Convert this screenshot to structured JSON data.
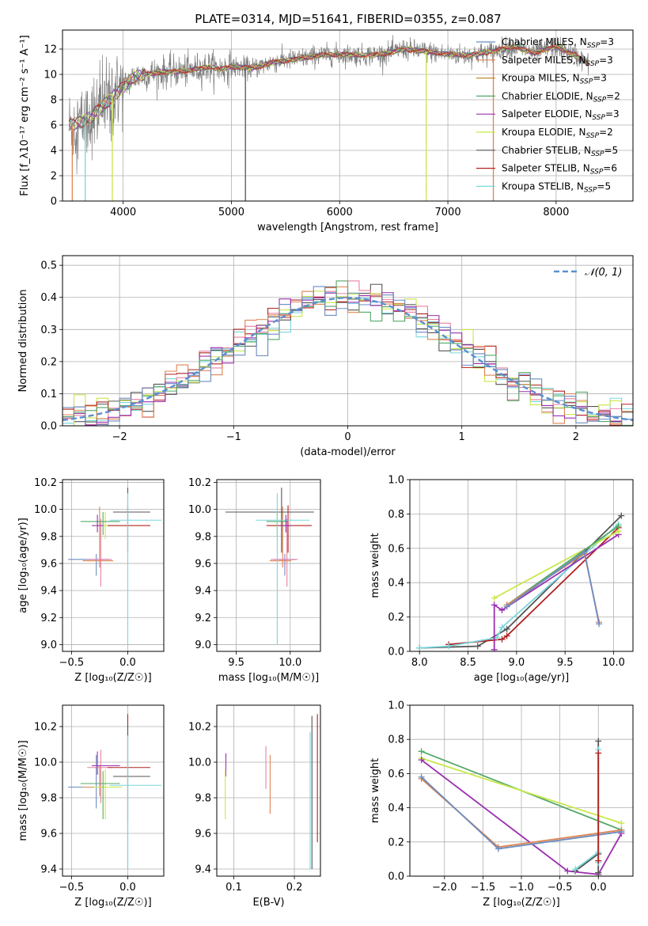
{
  "figure": {
    "title": "PLATE=0314, MJD=51641, FIBERID=0355, z=0.087",
    "colors": {
      "gray": "#808080",
      "cyan": "#7ad6dc",
      "orange": "#dd8452",
      "green": "#55a868",
      "red": "#b22222",
      "purple": "#9b30b0",
      "yellow": "#c8e84a",
      "darkgray": "#555555",
      "blue": "#6b8cc0",
      "pink": "#e880a0",
      "dashed": "#5b8fd0",
      "tan": "#c08a30"
    }
  },
  "chart_data": [
    {
      "type": "line",
      "id": "spectrum",
      "xlabel": "wavelength [Angstrom, rest frame]",
      "ylabel": "Flux [f_λ10⁻¹⁷ erg cm⁻² s⁻¹ A⁻¹]",
      "xlim": [
        3440,
        8710
      ],
      "ylim": [
        0,
        13.5
      ],
      "xticks": [
        4000,
        5000,
        6000,
        7000,
        8000
      ],
      "yticks": [
        0,
        2,
        4,
        6,
        8,
        10,
        12
      ],
      "legend_position": "right",
      "legend": [
        {
          "label": "Chabrier MILES, N",
          "sub": "SSP",
          "val": "=3",
          "color": "blue"
        },
        {
          "label": "Salpeter MILES, N",
          "sub": "SSP",
          "val": "=3",
          "color": "orange"
        },
        {
          "label": "Kroupa MILES, N",
          "sub": "SSP",
          "val": "=3",
          "color": "tan"
        },
        {
          "label": "Chabrier ELODIE, N",
          "sub": "SSP",
          "val": "=2",
          "color": "green"
        },
        {
          "label": "Salpeter ELODIE, N",
          "sub": "SSP",
          "val": "=3",
          "color": "purple"
        },
        {
          "label": "Kroupa ELODIE, N",
          "sub": "SSP",
          "val": "=2",
          "color": "yellow"
        },
        {
          "label": "Chabrier STELIB, N",
          "sub": "SSP",
          "val": "=5",
          "color": "darkgray"
        },
        {
          "label": "Salpeter STELIB, N",
          "sub": "SSP",
          "val": "=6",
          "color": "red"
        },
        {
          "label": "Kroupa STELIB, N",
          "sub": "SSP",
          "val": "=5",
          "color": "cyan"
        }
      ],
      "continuum": [
        [
          3500,
          6.0
        ],
        [
          3600,
          6.2
        ],
        [
          3700,
          6.6
        ],
        [
          3800,
          7.4
        ],
        [
          3900,
          8.2
        ],
        [
          4000,
          9.0
        ],
        [
          4100,
          9.8
        ],
        [
          4200,
          10.0
        ],
        [
          4400,
          10.2
        ],
        [
          4600,
          10.3
        ],
        [
          4800,
          10.6
        ],
        [
          4900,
          10.4
        ],
        [
          5000,
          10.6
        ],
        [
          5200,
          10.5
        ],
        [
          5400,
          11.0
        ],
        [
          5600,
          11.2
        ],
        [
          5800,
          11.5
        ],
        [
          6000,
          11.6
        ],
        [
          6200,
          11.5
        ],
        [
          6400,
          11.6
        ],
        [
          6600,
          12.0
        ],
        [
          6800,
          11.8
        ],
        [
          7000,
          11.6
        ],
        [
          7200,
          11.5
        ],
        [
          7400,
          11.8
        ],
        [
          7600,
          12.2
        ],
        [
          7800,
          11.7
        ],
        [
          8000,
          12.2
        ],
        [
          8200,
          11.4
        ],
        [
          8300,
          10.8
        ]
      ],
      "dips": [
        [
          3530,
          0
        ],
        [
          3650,
          0
        ],
        [
          3900,
          0
        ],
        [
          5130,
          0
        ],
        [
          6800,
          0
        ],
        [
          7420,
          0
        ]
      ]
    },
    {
      "type": "line",
      "id": "residuals",
      "xlabel": "(data-model)/error",
      "ylabel": "Normed distribution",
      "xlim": [
        -2.5,
        2.5
      ],
      "ylim": [
        0,
        0.53
      ],
      "xticks": [
        -2,
        -1,
        0,
        1,
        2
      ],
      "yticks": [
        0.0,
        0.1,
        0.2,
        0.3,
        0.4,
        0.5
      ],
      "legend": "𝒩(0, 1)",
      "legend_position": "top-right",
      "bin_width": 0.1
    },
    {
      "type": "scatter",
      "id": "age-vs-Z",
      "xlabel": "Z [log₁₀(Z/Z☉)]",
      "ylabel": "age  [log₁₀(age/yr)]",
      "xlim": [
        -0.58,
        0.32
      ],
      "ylim": [
        8.95,
        10.22
      ],
      "xticks": [
        -0.5,
        0.0
      ],
      "yticks": [
        9.0,
        9.2,
        9.4,
        9.6,
        9.8,
        10.0,
        10.2
      ],
      "points": [
        {
          "x": -0.28,
          "y": 9.63,
          "xerr": [
            0.25,
            0.12
          ],
          "yerr": [
            0.12,
            0.04
          ],
          "color": "blue"
        },
        {
          "x": -0.25,
          "y": 9.62,
          "xerr": [
            0.15,
            0.12
          ],
          "yerr": [
            0.05,
            0.4
          ],
          "color": "orange"
        },
        {
          "x": -0.24,
          "y": 9.63,
          "xerr": [
            0.12,
            0.1
          ],
          "yerr": [
            0.2,
            0.3
          ],
          "color": "pink"
        },
        {
          "x": -0.2,
          "y": 9.88,
          "xerr": [
            0.1,
            0.15
          ],
          "yerr": [
            0.1,
            0.1
          ],
          "color": "yellow"
        },
        {
          "x": -0.22,
          "y": 9.91,
          "xerr": [
            0.2,
            0.15
          ],
          "yerr": [
            0.1,
            0.07
          ],
          "color": "green"
        },
        {
          "x": 0.0,
          "y": 9.88,
          "xerr": [
            0.18,
            0.2
          ],
          "yerr": [
            0.2,
            0.15
          ],
          "color": "red"
        },
        {
          "x": 0.0,
          "y": 9.98,
          "xerr": [
            0.13,
            0.2
          ],
          "yerr": [
            0.3,
            0.18
          ],
          "color": "darkgray"
        },
        {
          "x": 0.0,
          "y": 9.92,
          "xerr": [
            0.16,
            0.3
          ],
          "yerr": [
            0.92,
            0.2
          ],
          "color": "cyan"
        },
        {
          "x": -0.27,
          "y": 9.88,
          "xerr": [
            0.05,
            0.05
          ],
          "yerr": [
            0.05,
            0.08
          ],
          "color": "purple"
        }
      ]
    },
    {
      "type": "scatter",
      "id": "age-vs-mass",
      "xlabel": "mass [log₁₀(M/M☉)]",
      "ylabel": "",
      "xlim": [
        9.32,
        10.28
      ],
      "ylim": [
        8.95,
        10.22
      ],
      "xticks": [
        9.5,
        10.0
      ],
      "yticks": [
        9.0,
        9.2,
        9.4,
        9.6,
        9.8,
        10.0,
        10.2
      ],
      "points": [
        {
          "x": 9.95,
          "y": 9.63,
          "xerr": [
            0.1,
            0.1
          ],
          "yerr": [
            0.12,
            0.04
          ],
          "color": "blue"
        },
        {
          "x": 9.93,
          "y": 9.62,
          "xerr": [
            0.12,
            0.08
          ],
          "yerr": [
            0.05,
            0.4
          ],
          "color": "orange"
        },
        {
          "x": 9.97,
          "y": 9.63,
          "xerr": [
            0.15,
            0.1
          ],
          "yerr": [
            0.2,
            0.3
          ],
          "color": "pink"
        },
        {
          "x": 9.88,
          "y": 9.88,
          "xerr": [
            0.08,
            0.08
          ],
          "yerr": [
            0.1,
            0.1
          ],
          "color": "yellow"
        },
        {
          "x": 9.88,
          "y": 9.91,
          "xerr": [
            0.1,
            0.1
          ],
          "yerr": [
            0.1,
            0.07
          ],
          "color": "green"
        },
        {
          "x": 9.98,
          "y": 9.88,
          "xerr": [
            0.2,
            0.22
          ],
          "yerr": [
            0.2,
            0.15
          ],
          "color": "red"
        },
        {
          "x": 9.92,
          "y": 9.98,
          "xerr": [
            0.52,
            0.3
          ],
          "yerr": [
            0.3,
            0.18
          ],
          "color": "darkgray"
        },
        {
          "x": 9.88,
          "y": 9.92,
          "xerr": [
            0.2,
            0.3
          ],
          "yerr": [
            0.92,
            0.2
          ],
          "color": "cyan"
        },
        {
          "x": 9.96,
          "y": 9.88,
          "xerr": [
            0.05,
            0.05
          ],
          "yerr": [
            0.05,
            0.08
          ],
          "color": "purple"
        }
      ]
    },
    {
      "type": "line",
      "id": "weight-vs-age",
      "xlabel": "age  [log₁₀(age/yr)]",
      "ylabel": "mass weight",
      "xlim": [
        7.9,
        10.2
      ],
      "ylim": [
        0,
        1.0
      ],
      "xticks": [
        8.0,
        8.5,
        9.0,
        9.5,
        10.0
      ],
      "yticks": [
        0.0,
        0.2,
        0.4,
        0.6,
        0.8,
        1.0
      ],
      "series": [
        {
          "color": "darkgray",
          "points": [
            [
              8.0,
              0.02
            ],
            [
              8.6,
              0.03
            ],
            [
              8.9,
              0.13
            ],
            [
              10.08,
              0.79
            ]
          ]
        },
        {
          "color": "red",
          "points": [
            [
              8.3,
              0.04
            ],
            [
              8.85,
              0.07
            ],
            [
              8.9,
              0.09
            ],
            [
              10.05,
              0.72
            ]
          ]
        },
        {
          "color": "cyan",
          "points": [
            [
              8.0,
              0.02
            ],
            [
              8.3,
              0.03
            ],
            [
              8.8,
              0.08
            ],
            [
              8.85,
              0.14
            ],
            [
              10.05,
              0.74
            ]
          ]
        },
        {
          "color": "purple",
          "points": [
            [
              8.77,
              0.01
            ],
            [
              8.77,
              0.27
            ],
            [
              8.85,
              0.24
            ],
            [
              10.05,
              0.68
            ]
          ]
        },
        {
          "color": "yellow",
          "points": [
            [
              8.77,
              0.31
            ],
            [
              10.05,
              0.7
            ]
          ]
        },
        {
          "color": "green",
          "points": [
            [
              8.9,
              0.27
            ],
            [
              10.05,
              0.73
            ]
          ]
        },
        {
          "color": "orange",
          "points": [
            [
              8.9,
              0.27
            ],
            [
              9.7,
              0.57
            ],
            [
              9.85,
              0.17
            ]
          ]
        },
        {
          "color": "blue",
          "points": [
            [
              8.9,
              0.26
            ],
            [
              9.7,
              0.58
            ],
            [
              9.85,
              0.16
            ]
          ]
        }
      ]
    },
    {
      "type": "scatter",
      "id": "mass-vs-Z",
      "xlabel": "Z [log₁₀(Z/Z☉)]",
      "ylabel": "mass [log₁₀(M/M☉)]",
      "xlim": [
        -0.58,
        0.32
      ],
      "ylim": [
        9.36,
        10.32
      ],
      "xticks": [
        -0.5,
        0.0
      ],
      "yticks": [
        9.4,
        9.6,
        9.8,
        10.0,
        10.2
      ],
      "points": [
        {
          "x": -0.28,
          "y": 9.86,
          "xerr": [
            0.25,
            0.12
          ],
          "yerr": [
            0.12,
            0.18
          ],
          "color": "blue"
        },
        {
          "x": -0.25,
          "y": 9.86,
          "xerr": [
            0.15,
            0.12
          ],
          "yerr": [
            0.05,
            0.12
          ],
          "color": "orange"
        },
        {
          "x": -0.24,
          "y": 9.97,
          "xerr": [
            0.12,
            0.1
          ],
          "yerr": [
            0.2,
            0.1
          ],
          "color": "pink"
        },
        {
          "x": -0.2,
          "y": 9.86,
          "xerr": [
            0.1,
            0.15
          ],
          "yerr": [
            0.18,
            0.1
          ],
          "color": "yellow"
        },
        {
          "x": -0.22,
          "y": 9.88,
          "xerr": [
            0.2,
            0.15
          ],
          "yerr": [
            0.2,
            0.07
          ],
          "color": "green"
        },
        {
          "x": 0.0,
          "y": 9.97,
          "xerr": [
            0.18,
            0.2
          ],
          "yerr": [
            0.3,
            0.3
          ],
          "color": "red"
        },
        {
          "x": 0.0,
          "y": 9.92,
          "xerr": [
            0.13,
            0.2
          ],
          "yerr": [
            0.52,
            0.3
          ],
          "color": "darkgray"
        },
        {
          "x": 0.0,
          "y": 9.87,
          "xerr": [
            0.16,
            0.3
          ],
          "yerr": [
            0.47,
            0.28
          ],
          "color": "cyan"
        },
        {
          "x": -0.27,
          "y": 9.98,
          "xerr": [
            0.05,
            0.2
          ],
          "yerr": [
            0.05,
            0.08
          ],
          "color": "purple"
        }
      ]
    },
    {
      "type": "scatter",
      "id": "mass-vs-EBV",
      "xlabel": "E(B-V)",
      "ylabel": "",
      "xlim": [
        0.072,
        0.243
      ],
      "ylim": [
        9.36,
        10.32
      ],
      "xticks": [
        0.1,
        0.2
      ],
      "yticks": [
        9.4,
        9.6,
        9.8,
        10.0,
        10.2
      ],
      "points": [
        {
          "x": 0.087,
          "y": 9.97,
          "yerr": [
            0.05,
            0.08
          ],
          "color": "purple"
        },
        {
          "x": 0.086,
          "y": 9.86,
          "yerr": [
            0.18,
            0.1
          ],
          "color": "yellow"
        },
        {
          "x": 0.153,
          "y": 9.97,
          "yerr": [
            0.12,
            0.12
          ],
          "color": "pink"
        },
        {
          "x": 0.16,
          "y": 9.86,
          "yerr": [
            0.15,
            0.18
          ],
          "color": "orange"
        },
        {
          "x": 0.226,
          "y": 9.87,
          "yerr": [
            0.47,
            0.3
          ],
          "color": "cyan"
        },
        {
          "x": 0.229,
          "y": 9.92,
          "yerr": [
            0.52,
            0.34
          ],
          "color": "darkgray"
        },
        {
          "x": 0.238,
          "y": 9.97,
          "yerr": [
            0.42,
            0.3
          ],
          "color": "red"
        }
      ]
    },
    {
      "type": "line",
      "id": "weight-vs-Z",
      "xlabel": "Z [log₁₀(Z/Z☉)]",
      "ylabel": "mass weight",
      "xlim": [
        -2.45,
        0.45
      ],
      "ylim": [
        0,
        1.0
      ],
      "xticks": [
        -2.0,
        -1.5,
        -1.0,
        -0.5,
        0.0
      ],
      "yticks": [
        0.0,
        0.2,
        0.4,
        0.6,
        0.8,
        1.0
      ],
      "series": [
        {
          "color": "green",
          "points": [
            [
              -2.3,
              0.73
            ],
            [
              0.3,
              0.27
            ]
          ]
        },
        {
          "color": "yellow",
          "points": [
            [
              -2.3,
              0.69
            ],
            [
              0.3,
              0.31
            ]
          ]
        },
        {
          "color": "purple",
          "points": [
            [
              -2.3,
              0.68
            ],
            [
              -0.4,
              0.03
            ],
            [
              0.0,
              0.01
            ],
            [
              0.3,
              0.25
            ]
          ]
        },
        {
          "color": "orange",
          "points": [
            [
              -2.3,
              0.57
            ],
            [
              -1.3,
              0.17
            ],
            [
              0.3,
              0.27
            ]
          ]
        },
        {
          "color": "blue",
          "points": [
            [
              -2.3,
              0.58
            ],
            [
              -1.3,
              0.16
            ],
            [
              0.3,
              0.26
            ]
          ]
        },
        {
          "color": "darkgray",
          "points": [
            [
              -0.3,
              0.03
            ],
            [
              0.0,
              0.13
            ],
            [
              0.0,
              0.79
            ],
            [
              0.0,
              0.02
            ]
          ]
        },
        {
          "color": "cyan",
          "points": [
            [
              -0.3,
              0.04
            ],
            [
              0.0,
              0.14
            ],
            [
              0.0,
              0.74
            ],
            [
              0.0,
              0.08
            ]
          ]
        },
        {
          "color": "red",
          "points": [
            [
              0.0,
              0.72
            ],
            [
              0.0,
              0.09
            ]
          ]
        }
      ]
    }
  ]
}
